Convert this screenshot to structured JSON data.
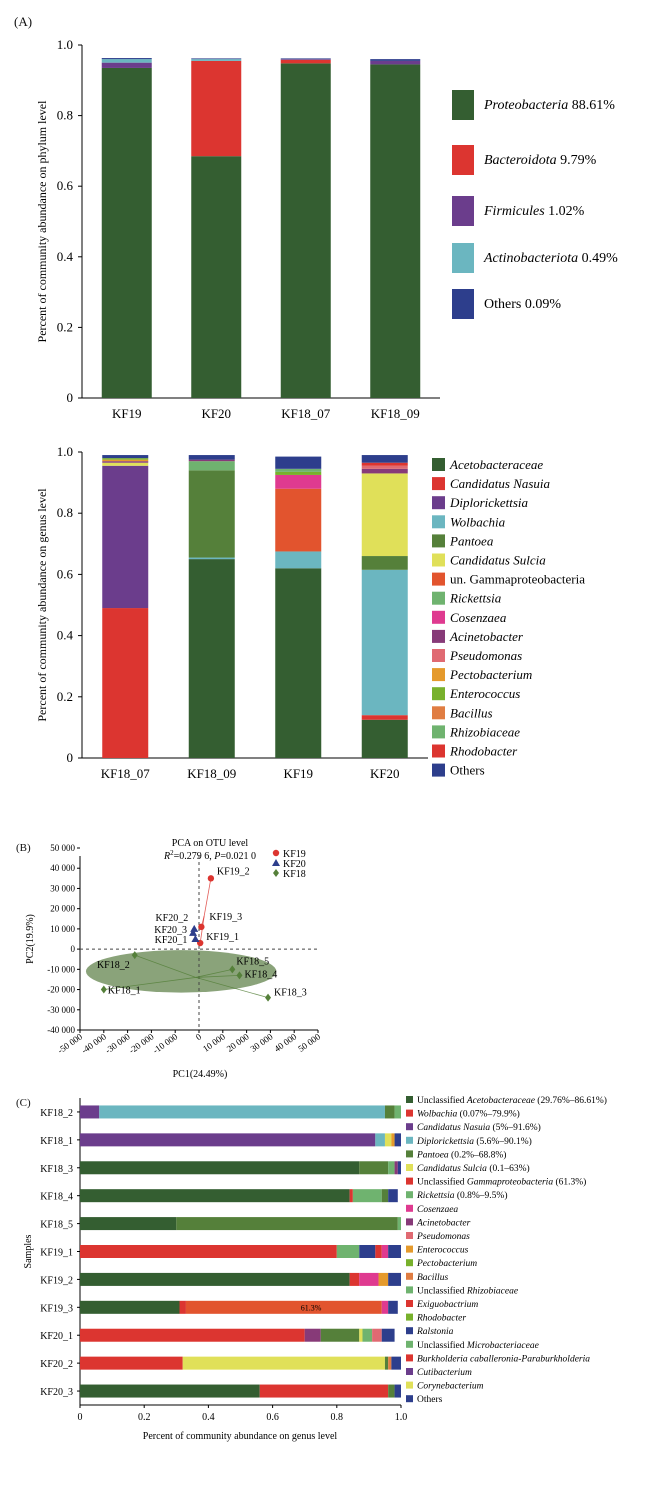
{
  "panels": {
    "a": "(A)",
    "b": "(B)",
    "c": "(C)"
  },
  "colors": {
    "dkgreen": "#345e31",
    "red": "#dc3530",
    "purple": "#6b3d8c",
    "teal": "#6bb6c0",
    "olive": "#55803a",
    "yellow": "#e0e059",
    "orange": "#e2542e",
    "ltgreen": "#6fb36f",
    "pink": "#df3a90",
    "plum": "#873a78",
    "salmon": "#e06a72",
    "amber": "#e59a2c",
    "lime": "#78b12c",
    "tan": "#e07d42",
    "navy": "#2d3e8c",
    "gray": "#8a8a8a",
    "oliveell": "#8aa37a"
  },
  "chart_data": [
    {
      "id": "phylum",
      "type": "bar",
      "stacked": true,
      "ylabel": "Percent of community abundance on phylum level",
      "ylim": [
        0,
        1.0
      ],
      "yticks": [
        "0",
        "0.2",
        "0.4",
        "0.6",
        "0.8",
        "1.0"
      ],
      "categories": [
        "KF19",
        "KF20",
        "KF18_07",
        "KF18_09"
      ],
      "series": [
        {
          "name": "Proteobacteria",
          "pct": "88.61%",
          "color": "dkgreen",
          "values": [
            0.935,
            0.685,
            0.948,
            0.945
          ]
        },
        {
          "name": "Bacteroidota",
          "pct": "9.79%",
          "color": "red",
          "values": [
            0.0,
            0.27,
            0.01,
            0.0
          ]
        },
        {
          "name": "Firmicules",
          "pct": "1.02%",
          "color": "purple",
          "values": [
            0.015,
            0.0,
            0.002,
            0.01
          ]
        },
        {
          "name": "Actinobacteriota",
          "pct": "0.49%",
          "color": "teal",
          "values": [
            0.01,
            0.005,
            0.0,
            0.0
          ]
        },
        {
          "name": "Others",
          "pct": "0.09%",
          "color": "navy",
          "values": [
            0.003,
            0.002,
            0.002,
            0.005
          ]
        }
      ],
      "legend_position": "right"
    },
    {
      "id": "genus",
      "type": "bar",
      "stacked": true,
      "ylabel": "Percent of community abundance on genus level",
      "ylim": [
        0,
        1.0
      ],
      "yticks": [
        "0",
        "0.2",
        "0.4",
        "0.6",
        "0.8",
        "1.0"
      ],
      "categories": [
        "KF18_07",
        "KF18_09",
        "KF19",
        "KF20"
      ],
      "series": [
        {
          "name": "Acetobacteraceae",
          "color": "dkgreen",
          "values": [
            0.0,
            0.65,
            0.62,
            0.125
          ]
        },
        {
          "name": "Candidatus Nasuia",
          "color": "red",
          "values": [
            0.49,
            0.0,
            0.0,
            0.015
          ]
        },
        {
          "name": "Diplorickettsia",
          "color": "purple",
          "values": [
            0.465,
            0.0,
            0.0,
            0.0
          ]
        },
        {
          "name": "Wolbachia",
          "color": "teal",
          "values": [
            0.0,
            0.005,
            0.055,
            0.475
          ]
        },
        {
          "name": "Pantoea",
          "color": "olive",
          "values": [
            0.0,
            0.285,
            0.0,
            0.045
          ]
        },
        {
          "name": "Candidatus Sulcia",
          "color": "yellow",
          "values": [
            0.01,
            0.0,
            0.0,
            0.27
          ]
        },
        {
          "name": "un. Gammaproteobacteria",
          "color": "orange",
          "values": [
            0.0,
            0.0,
            0.205,
            0.0
          ]
        },
        {
          "name": "Rickettsia",
          "color": "ltgreen",
          "values": [
            0.0,
            0.03,
            0.0,
            0.0
          ]
        },
        {
          "name": "Cosenzaea",
          "color": "pink",
          "values": [
            0.0,
            0.0,
            0.045,
            0.0
          ]
        },
        {
          "name": "Acinetobacter",
          "color": "plum",
          "values": [
            0.005,
            0.005,
            0.0,
            0.015
          ]
        },
        {
          "name": "Pseudomonas",
          "color": "salmon",
          "values": [
            0.0,
            0.0,
            0.0,
            0.01
          ]
        },
        {
          "name": "Pectobacterium",
          "color": "amber",
          "values": [
            0.005,
            0.0,
            0.0,
            0.0
          ]
        },
        {
          "name": "Enterococcus",
          "color": "lime",
          "values": [
            0.005,
            0.0,
            0.01,
            0.0
          ]
        },
        {
          "name": "Bacillus",
          "color": "tan",
          "values": [
            0.0,
            0.0,
            0.0,
            0.0
          ]
        },
        {
          "name": "Rhizobiaceae",
          "color": "ltgreen",
          "values": [
            0.0,
            0.0,
            0.01,
            0.0
          ]
        },
        {
          "name": "Rhodobacter",
          "color": "red",
          "values": [
            0.0,
            0.0,
            0.0,
            0.01
          ]
        },
        {
          "name": "Others",
          "color": "navy",
          "values": [
            0.01,
            0.015,
            0.04,
            0.025
          ]
        }
      ],
      "legend_position": "right"
    },
    {
      "id": "pca",
      "type": "scatter",
      "title": "PCA on OTU level",
      "subtitle": {
        "r": "R",
        "sup": "2",
        "rest": "=0.279 6, ",
        "p": "P",
        "prest": "=0.021 0"
      },
      "xlabel": "PC1(24.49%)",
      "ylabel": "PC2(19.9%)",
      "xlim": [
        -50000,
        50000
      ],
      "ylim": [
        -40000,
        50000
      ],
      "xticks": [
        "-50 000",
        "-40 000",
        "-30 000",
        "-20 000",
        "-10 000",
        "0",
        "10 000",
        "20 000",
        "30 000",
        "40 000",
        "50 000"
      ],
      "yticks": [
        "50 000",
        "40 000",
        "30 000",
        "20 000",
        "10 000",
        "0",
        "-10 000",
        "-20 000",
        "-30 000",
        "-40 000"
      ],
      "groups": [
        {
          "name": "KF19",
          "color": "red",
          "marker": "circle"
        },
        {
          "name": "KF20",
          "color": "navy",
          "marker": "triangle"
        },
        {
          "name": "KF18",
          "color": "olive",
          "marker": "diamond"
        }
      ],
      "points": [
        {
          "label": "KF19_2",
          "group": "KF19",
          "x": 5000,
          "y": 35000
        },
        {
          "label": "KF19_3",
          "group": "KF19",
          "x": 1000,
          "y": 11000
        },
        {
          "label": "KF19_1",
          "group": "KF19",
          "x": 500,
          "y": 3000
        },
        {
          "label": "KF20_2",
          "group": "KF20",
          "x": -2000,
          "y": 10000
        },
        {
          "label": "KF20_3",
          "group": "KF20",
          "x": -2500,
          "y": 8000
        },
        {
          "label": "KF20_1",
          "group": "KF20",
          "x": -1500,
          "y": 5000
        },
        {
          "label": "KF18_2",
          "group": "KF18",
          "x": -27000,
          "y": -3000
        },
        {
          "label": "KF18_1",
          "group": "KF18",
          "x": -40000,
          "y": -20000
        },
        {
          "label": "KF18_5",
          "group": "KF18",
          "x": 14000,
          "y": -10000
        },
        {
          "label": "KF18_4",
          "group": "KF18",
          "x": 17000,
          "y": -13000
        },
        {
          "label": "KF18_3",
          "group": "KF18",
          "x": 29000,
          "y": -24000
        }
      ]
    },
    {
      "id": "samples",
      "type": "bar",
      "orientation": "horizontal",
      "stacked": true,
      "ylabel": "Samples",
      "xlabel": "Percent of community abundance on genus level",
      "xlim": [
        0,
        1.0
      ],
      "xticks": [
        "0",
        "0.2",
        "0.4",
        "0.6",
        "0.8",
        "1.0"
      ],
      "annotation": {
        "text": "61.3%",
        "row": "KF19_3",
        "at": 0.72
      },
      "categories": [
        "KF18_2",
        "KF18_1",
        "KF18_3",
        "KF18_4",
        "KF18_5",
        "KF19_1",
        "KF19_2",
        "KF19_3",
        "KF20_1",
        "KF20_2",
        "KF20_3"
      ],
      "rows": [
        [
          [
            "purple",
            0.06
          ],
          [
            "teal",
            0.89
          ],
          [
            "olive",
            0.03
          ],
          [
            "ltgreen",
            0.02
          ]
        ],
        [
          [
            "purple",
            0.92
          ],
          [
            "teal",
            0.03
          ],
          [
            "yellow",
            0.02
          ],
          [
            "amber",
            0.01
          ],
          [
            "navy",
            0.02
          ]
        ],
        [
          [
            "dkgreen",
            0.87
          ],
          [
            "olive",
            0.09
          ],
          [
            "ltgreen",
            0.02
          ],
          [
            "plum",
            0.01
          ],
          [
            "navy",
            0.01
          ]
        ],
        [
          [
            "dkgreen",
            0.84
          ],
          [
            "red",
            0.01
          ],
          [
            "ltgreen",
            0.09
          ],
          [
            "olive",
            0.02
          ],
          [
            "navy",
            0.03
          ]
        ],
        [
          [
            "dkgreen",
            0.3
          ],
          [
            "olive",
            0.69
          ],
          [
            "ltgreen",
            0.01
          ]
        ],
        [
          [
            "red",
            0.8
          ],
          [
            "ltgreen",
            0.07
          ],
          [
            "navy",
            0.05
          ],
          [
            "red",
            0.02
          ],
          [
            "pink",
            0.02
          ],
          [
            "navy",
            0.04
          ]
        ],
        [
          [
            "dkgreen",
            0.84
          ],
          [
            "red",
            0.03
          ],
          [
            "pink",
            0.06
          ],
          [
            "amber",
            0.03
          ],
          [
            "navy",
            0.04
          ]
        ],
        [
          [
            "dkgreen",
            0.31
          ],
          [
            "red",
            0.02
          ],
          [
            "orange",
            0.61
          ],
          [
            "pink",
            0.02
          ],
          [
            "navy",
            0.03
          ]
        ],
        [
          [
            "red",
            0.7
          ],
          [
            "plum",
            0.05
          ],
          [
            "olive",
            0.12
          ],
          [
            "yellow",
            0.01
          ],
          [
            "ltgreen",
            0.03
          ],
          [
            "salmon",
            0.03
          ],
          [
            "navy",
            0.04
          ]
        ],
        [
          [
            "red",
            0.32
          ],
          [
            "yellow",
            0.63
          ],
          [
            "olive",
            0.01
          ],
          [
            "tan",
            0.01
          ],
          [
            "navy",
            0.03
          ]
        ],
        [
          [
            "dkgreen",
            0.56
          ],
          [
            "red",
            0.4
          ],
          [
            "olive",
            0.02
          ],
          [
            "navy",
            0.02
          ]
        ]
      ],
      "legend": [
        {
          "color": "dkgreen",
          "pre": "Unclassified ",
          "name": "Acetobacteraceae",
          "post": " (29.76%–86.61%)"
        },
        {
          "color": "red",
          "pre": "",
          "name": "Wolbachia",
          "post": " (0.07%–79.9%)"
        },
        {
          "color": "purple",
          "pre": "",
          "name": "Candidatus Nasuia",
          "post": " (5%–91.6%)"
        },
        {
          "color": "teal",
          "pre": "",
          "name": "Diplorickettsia",
          "post": " (5.6%–90.1%)"
        },
        {
          "color": "olive",
          "pre": "",
          "name": "Pantoea",
          "post": " (0.2%–68.8%)"
        },
        {
          "color": "yellow",
          "pre": "",
          "name": "Candidatus Sulcia",
          "post": " (0.1–63%)"
        },
        {
          "color": "red",
          "pre": "Unclassified ",
          "name": "Gammaproteobacteria",
          "post": " (61.3%)"
        },
        {
          "color": "ltgreen",
          "pre": "",
          "name": "Rickettsia",
          "post": " (0.8%–9.5%)"
        },
        {
          "color": "pink",
          "pre": "",
          "name": "Cosenzaea",
          "post": ""
        },
        {
          "color": "plum",
          "pre": "",
          "name": "Acinetobacter",
          "post": ""
        },
        {
          "color": "salmon",
          "pre": "",
          "name": "Pseudomonas",
          "post": ""
        },
        {
          "color": "amber",
          "pre": "",
          "name": "Enterococcus",
          "post": ""
        },
        {
          "color": "lime",
          "pre": "",
          "name": "Pectobacterium",
          "post": ""
        },
        {
          "color": "tan",
          "pre": "",
          "name": "Bacillus",
          "post": ""
        },
        {
          "color": "ltgreen",
          "pre": "Unclassified ",
          "name": "Rhizobiaceae",
          "post": ""
        },
        {
          "color": "red",
          "pre": "",
          "name": "Exiguobactrium",
          "post": ""
        },
        {
          "color": "lime",
          "pre": "",
          "name": "Rhodobacter",
          "post": ""
        },
        {
          "color": "navy",
          "pre": "",
          "name": "Ralstonia",
          "post": ""
        },
        {
          "color": "ltgreen",
          "pre": "Unclassified ",
          "name": "Microbacteriaceae",
          "post": ""
        },
        {
          "color": "red",
          "pre": "",
          "name": "Burkholderia caballeronia-Paraburkholderia",
          "post": ""
        },
        {
          "color": "purple",
          "pre": "",
          "name": "Cutibacterium",
          "post": ""
        },
        {
          "color": "yellow",
          "pre": "",
          "name": "Corynebacterium",
          "post": ""
        },
        {
          "color": "navy",
          "pre": "",
          "name": "Others",
          "post": ""
        }
      ]
    }
  ]
}
